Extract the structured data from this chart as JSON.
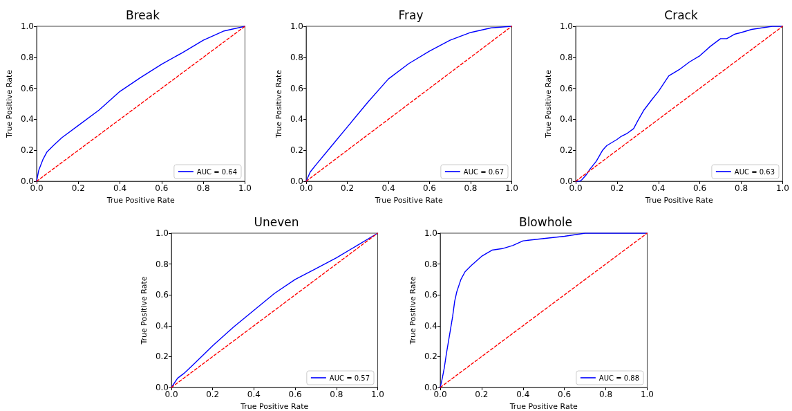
{
  "chart_data": [
    {
      "type": "line",
      "title": "Break",
      "xlabel": "True Positive Rate",
      "ylabel": "True Positive Rate",
      "xlim": [
        0,
        1
      ],
      "ylim": [
        0,
        1
      ],
      "xticks": [
        {
          "value": 0,
          "label": "0.0"
        },
        {
          "value": 0.2,
          "label": "0.2"
        },
        {
          "value": 0.4,
          "label": "0.4"
        },
        {
          "value": 0.6,
          "label": "0.6"
        },
        {
          "value": 0.8,
          "label": "0.8"
        },
        {
          "value": 1,
          "label": "1.0"
        }
      ],
      "yticks": [
        {
          "value": 0,
          "label": "0.0"
        },
        {
          "value": 0.2,
          "label": "0.2"
        },
        {
          "value": 0.4,
          "label": "0.4"
        },
        {
          "value": 0.6,
          "label": "0.6"
        },
        {
          "value": 0.8,
          "label": "0.8"
        },
        {
          "value": 1,
          "label": "1.0"
        }
      ],
      "grid": false,
      "legend": "bottom right",
      "series": [
        {
          "name": "AUC = 0.64",
          "color": "#0000ff",
          "x": [
            0,
            0.01,
            0.03,
            0.05,
            0.08,
            0.12,
            0.2,
            0.3,
            0.4,
            0.5,
            0.6,
            0.7,
            0.8,
            0.9,
            1
          ],
          "values": [
            0,
            0.07,
            0.14,
            0.19,
            0.23,
            0.28,
            0.36,
            0.46,
            0.58,
            0.67,
            0.755,
            0.83,
            0.91,
            0.97,
            1
          ]
        },
        {
          "color": "#ff0000",
          "line_style": "dashed",
          "x": [
            0,
            1
          ],
          "values": [
            0,
            1
          ]
        }
      ]
    },
    {
      "type": "line",
      "title": "Fray",
      "xlabel": "True Positive Rate",
      "ylabel": "True Positive Rate",
      "xlim": [
        0,
        1
      ],
      "ylim": [
        0,
        1
      ],
      "xticks": [
        {
          "value": 0,
          "label": "0.0"
        },
        {
          "value": 0.2,
          "label": "0.2"
        },
        {
          "value": 0.4,
          "label": "0.4"
        },
        {
          "value": 0.6,
          "label": "0.6"
        },
        {
          "value": 0.8,
          "label": "0.8"
        },
        {
          "value": 1,
          "label": "1.0"
        }
      ],
      "yticks": [
        {
          "value": 0,
          "label": "0.0"
        },
        {
          "value": 0.2,
          "label": "0.2"
        },
        {
          "value": 0.4,
          "label": "0.4"
        },
        {
          "value": 0.6,
          "label": "0.6"
        },
        {
          "value": 0.8,
          "label": "0.8"
        },
        {
          "value": 1,
          "label": "1.0"
        }
      ],
      "grid": false,
      "legend": "bottom right",
      "series": [
        {
          "name": "AUC = 0.67",
          "color": "#0000ff",
          "x": [
            0,
            0.02,
            0.05,
            0.1,
            0.15,
            0.2,
            0.3,
            0.4,
            0.5,
            0.6,
            0.7,
            0.8,
            0.9,
            1
          ],
          "values": [
            0,
            0.06,
            0.11,
            0.19,
            0.27,
            0.35,
            0.51,
            0.66,
            0.76,
            0.84,
            0.91,
            0.96,
            0.99,
            1
          ]
        },
        {
          "color": "#ff0000",
          "line_style": "dashed",
          "x": [
            0,
            1
          ],
          "values": [
            0,
            1
          ]
        }
      ]
    },
    {
      "type": "line",
      "title": "Crack",
      "xlabel": "True Positive Rate",
      "ylabel": "True Positive Rate",
      "xlim": [
        0,
        1
      ],
      "ylim": [
        0,
        1
      ],
      "xticks": [
        {
          "value": 0,
          "label": "0.0"
        },
        {
          "value": 0.2,
          "label": "0.2"
        },
        {
          "value": 0.4,
          "label": "0.4"
        },
        {
          "value": 0.6,
          "label": "0.6"
        },
        {
          "value": 0.8,
          "label": "0.8"
        },
        {
          "value": 1,
          "label": "1.0"
        }
      ],
      "yticks": [
        {
          "value": 0,
          "label": "0.0"
        },
        {
          "value": 0.2,
          "label": "0.2"
        },
        {
          "value": 0.4,
          "label": "0.4"
        },
        {
          "value": 0.6,
          "label": "0.6"
        },
        {
          "value": 0.8,
          "label": "0.8"
        },
        {
          "value": 1,
          "label": "1.0"
        }
      ],
      "grid": false,
      "legend": "bottom right",
      "series": [
        {
          "name": "AUC = 0.63",
          "color": "#0000ff",
          "x": [
            0,
            0.02,
            0.03,
            0.05,
            0.07,
            0.1,
            0.13,
            0.15,
            0.2,
            0.22,
            0.25,
            0.28,
            0.3,
            0.33,
            0.37,
            0.4,
            0.45,
            0.5,
            0.55,
            0.6,
            0.65,
            0.7,
            0.73,
            0.77,
            0.8,
            0.85,
            0.9,
            0.95,
            1
          ],
          "values": [
            0,
            0,
            0.01,
            0.04,
            0.08,
            0.13,
            0.2,
            0.23,
            0.27,
            0.29,
            0.31,
            0.34,
            0.39,
            0.46,
            0.53,
            0.58,
            0.68,
            0.72,
            0.77,
            0.81,
            0.87,
            0.92,
            0.92,
            0.95,
            0.96,
            0.98,
            0.99,
            1,
            1
          ]
        },
        {
          "color": "#ff0000",
          "line_style": "dashed",
          "x": [
            0,
            1
          ],
          "values": [
            0,
            1
          ]
        }
      ]
    },
    {
      "type": "line",
      "title": "Uneven",
      "xlabel": "True Positive Rate",
      "ylabel": "True Positive Rate",
      "xlim": [
        0,
        1
      ],
      "ylim": [
        0,
        1
      ],
      "xticks": [
        {
          "value": 0,
          "label": "0.0"
        },
        {
          "value": 0.2,
          "label": "0.2"
        },
        {
          "value": 0.4,
          "label": "0.4"
        },
        {
          "value": 0.6,
          "label": "0.6"
        },
        {
          "value": 0.8,
          "label": "0.8"
        },
        {
          "value": 1,
          "label": "1.0"
        }
      ],
      "yticks": [
        {
          "value": 0,
          "label": "0.0"
        },
        {
          "value": 0.2,
          "label": "0.2"
        },
        {
          "value": 0.4,
          "label": "0.4"
        },
        {
          "value": 0.6,
          "label": "0.6"
        },
        {
          "value": 0.8,
          "label": "0.8"
        },
        {
          "value": 1,
          "label": "1.0"
        }
      ],
      "grid": false,
      "legend": "bottom right",
      "series": [
        {
          "name": "AUC = 0.57",
          "color": "#0000ff",
          "x": [
            0,
            0.03,
            0.06,
            0.1,
            0.2,
            0.3,
            0.4,
            0.5,
            0.6,
            0.7,
            0.8,
            0.9,
            1
          ],
          "values": [
            0,
            0.06,
            0.09,
            0.14,
            0.27,
            0.39,
            0.5,
            0.61,
            0.7,
            0.77,
            0.84,
            0.92,
            1
          ]
        },
        {
          "color": "#ff0000",
          "line_style": "dashed",
          "x": [
            0,
            1
          ],
          "values": [
            0,
            1
          ]
        }
      ]
    },
    {
      "type": "line",
      "title": "Blowhole",
      "xlabel": "True Positive Rate",
      "ylabel": "True Positive Rate",
      "xlim": [
        0,
        1
      ],
      "ylim": [
        0,
        1
      ],
      "xticks": [
        {
          "value": 0,
          "label": "0.0"
        },
        {
          "value": 0.2,
          "label": "0.2"
        },
        {
          "value": 0.4,
          "label": "0.4"
        },
        {
          "value": 0.6,
          "label": "0.6"
        },
        {
          "value": 0.8,
          "label": "0.8"
        },
        {
          "value": 1,
          "label": "1.0"
        }
      ],
      "yticks": [
        {
          "value": 0,
          "label": "0.0"
        },
        {
          "value": 0.2,
          "label": "0.2"
        },
        {
          "value": 0.4,
          "label": "0.4"
        },
        {
          "value": 0.6,
          "label": "0.6"
        },
        {
          "value": 0.8,
          "label": "0.8"
        },
        {
          "value": 1,
          "label": "1.0"
        }
      ],
      "grid": false,
      "legend": "bottom right",
      "series": [
        {
          "name": "AUC = 0.88",
          "color": "#0000ff",
          "x": [
            0,
            0.01,
            0.02,
            0.03,
            0.04,
            0.05,
            0.06,
            0.07,
            0.08,
            0.1,
            0.12,
            0.15,
            0.2,
            0.25,
            0.3,
            0.35,
            0.4,
            0.5,
            0.6,
            0.7,
            0.85,
            1
          ],
          "values": [
            0,
            0.06,
            0.13,
            0.22,
            0.3,
            0.38,
            0.46,
            0.56,
            0.62,
            0.7,
            0.75,
            0.79,
            0.85,
            0.89,
            0.9,
            0.92,
            0.95,
            0.965,
            0.98,
            1,
            1,
            1
          ]
        },
        {
          "color": "#ff0000",
          "line_style": "dashed",
          "x": [
            0,
            1
          ],
          "values": [
            0,
            1
          ]
        }
      ]
    }
  ]
}
